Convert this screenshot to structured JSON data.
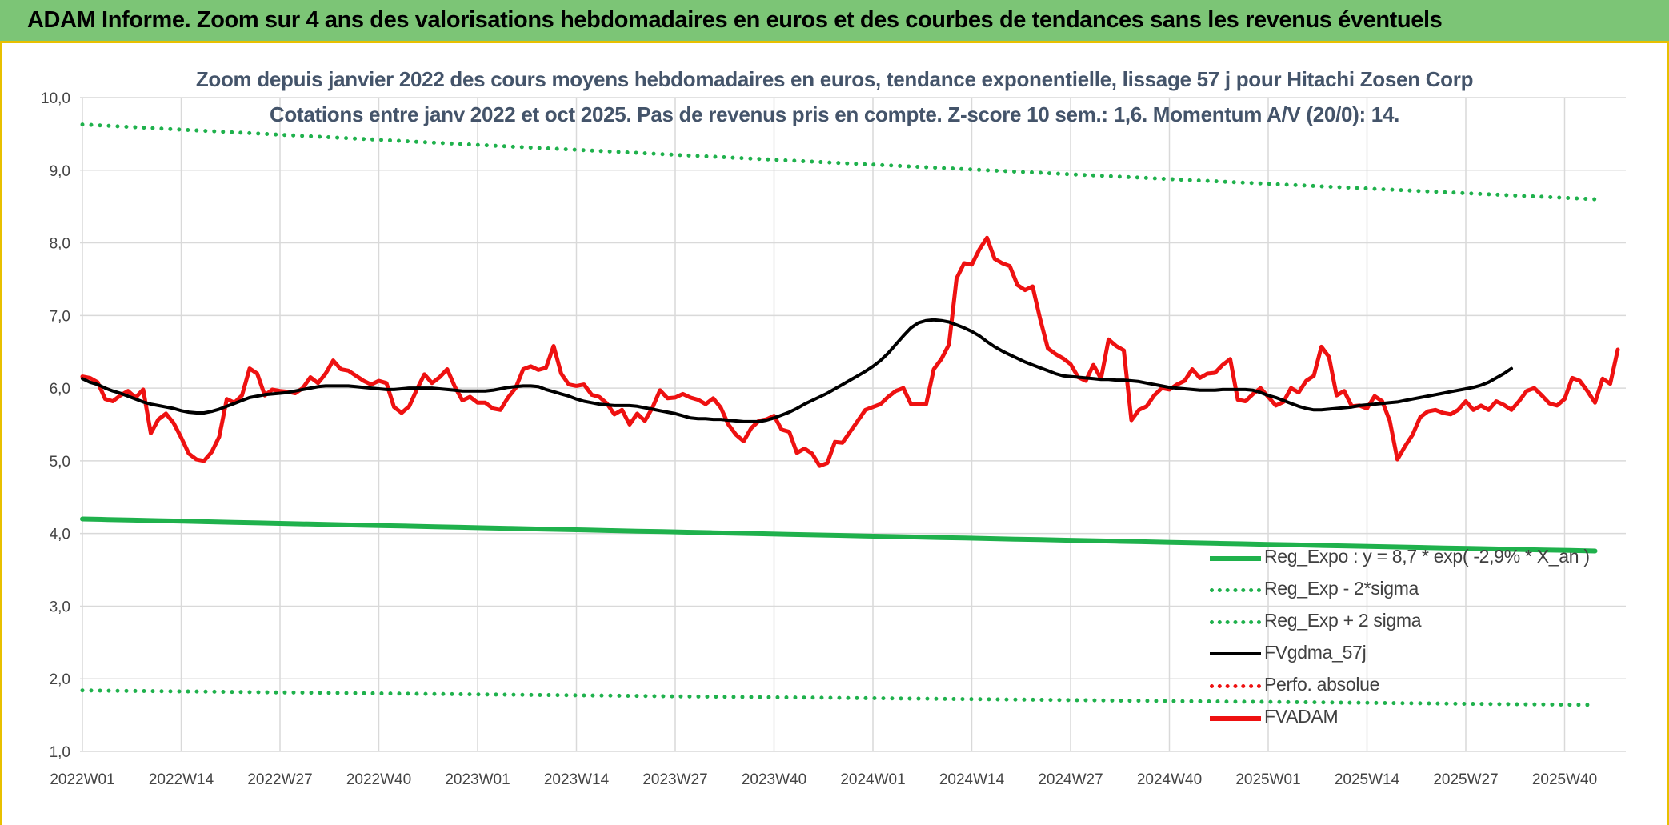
{
  "header": {
    "title": "ADAM Informe. Zoom sur 4 ans des valorisations hebdomadaires en euros et des courbes de tendances sans les revenus éventuels"
  },
  "colors": {
    "header_bg": "#7cc576",
    "border": "#e8c000",
    "green": "#1fb14c",
    "red": "#ee1111",
    "black": "#000000",
    "title_text": "#44546a"
  },
  "chart_data": {
    "type": "line",
    "title": "Zoom depuis janvier 2022 des cours moyens hebdomadaires en euros, tendance exponentielle, lissage 57 j pour Hitachi Zosen Corp",
    "subtitle": "Cotations entre janv 2022 et oct 2025. Pas de revenus pris en compte. Z-score 10 sem.: 1,6. Momentum A/V (20/0): 14.",
    "ylim": [
      1.0,
      10.0
    ],
    "yticks": [
      "1,0",
      "2,0",
      "3,0",
      "4,0",
      "5,0",
      "6,0",
      "7,0",
      "8,0",
      "9,0",
      "10,0"
    ],
    "xticks": [
      "2022W01",
      "2022W14",
      "2022W27",
      "2022W40",
      "2023W01",
      "2023W14",
      "2023W27",
      "2023W40",
      "2024W01",
      "2024W14",
      "2024W27",
      "2024W40",
      "2025W01",
      "2025W14",
      "2025W27",
      "2025W40"
    ],
    "grid": true,
    "legend_position": "bottom-right",
    "series": [
      {
        "name": "Reg_Expo : y = 8,7 * exp( -2,9% * X_an )",
        "style": "solid-thick",
        "color": "#1fb14c",
        "x": [
          "2022W01",
          "2025W44"
        ],
        "values": [
          4.2,
          3.76
        ]
      },
      {
        "name": "Reg_Exp - 2*sigma",
        "style": "dotted",
        "color": "#1fb14c",
        "x": [
          "2022W01",
          "2025W44"
        ],
        "values": [
          1.84,
          1.64
        ]
      },
      {
        "name": "Reg_Exp + 2 sigma",
        "style": "dotted",
        "color": "#1fb14c",
        "x": [
          "2022W01",
          "2025W44"
        ],
        "values": [
          9.63,
          8.6
        ]
      },
      {
        "name": "FVgdma_57j",
        "style": "solid",
        "color": "#000000",
        "x_start": "2022W01",
        "values": [
          6.13,
          6.08,
          6.05,
          6.0,
          5.96,
          5.93,
          5.89,
          5.85,
          5.81,
          5.78,
          5.76,
          5.74,
          5.72,
          5.69,
          5.67,
          5.66,
          5.66,
          5.68,
          5.71,
          5.75,
          5.79,
          5.83,
          5.87,
          5.89,
          5.91,
          5.92,
          5.93,
          5.94,
          5.96,
          5.98,
          6.0,
          6.02,
          6.03,
          6.03,
          6.03,
          6.03,
          6.02,
          6.01,
          6.0,
          5.99,
          5.98,
          5.98,
          5.99,
          6.0,
          6.0,
          6.0,
          6.0,
          5.99,
          5.98,
          5.97,
          5.96,
          5.96,
          5.96,
          5.96,
          5.97,
          5.99,
          6.01,
          6.02,
          6.03,
          6.03,
          6.02,
          5.98,
          5.95,
          5.92,
          5.89,
          5.85,
          5.82,
          5.8,
          5.78,
          5.77,
          5.76,
          5.76,
          5.76,
          5.75,
          5.73,
          5.71,
          5.69,
          5.67,
          5.65,
          5.62,
          5.59,
          5.58,
          5.58,
          5.57,
          5.57,
          5.56,
          5.55,
          5.54,
          5.54,
          5.54,
          5.56,
          5.59,
          5.63,
          5.67,
          5.72,
          5.78,
          5.83,
          5.88,
          5.93,
          5.99,
          6.05,
          6.11,
          6.17,
          6.23,
          6.3,
          6.38,
          6.48,
          6.6,
          6.72,
          6.83,
          6.9,
          6.93,
          6.94,
          6.93,
          6.91,
          6.87,
          6.83,
          6.78,
          6.72,
          6.64,
          6.57,
          6.51,
          6.46,
          6.41,
          6.36,
          6.32,
          6.28,
          6.24,
          6.2,
          6.17,
          6.16,
          6.15,
          6.14,
          6.13,
          6.12,
          6.12,
          6.11,
          6.11,
          6.1,
          6.09,
          6.07,
          6.05,
          6.03,
          6.01,
          6.0,
          5.99,
          5.98,
          5.97,
          5.97,
          5.97,
          5.98,
          5.98,
          5.98,
          5.98,
          5.97,
          5.94,
          5.9,
          5.87,
          5.83,
          5.79,
          5.75,
          5.72,
          5.7,
          5.7,
          5.71,
          5.72,
          5.73,
          5.74,
          5.76,
          5.77,
          5.78,
          5.79,
          5.8,
          5.81,
          5.83,
          5.85,
          5.87,
          5.89,
          5.91,
          5.93,
          5.95,
          5.97,
          5.99,
          6.01,
          6.04,
          6.08,
          6.14,
          6.2,
          6.27
        ]
      },
      {
        "name": "Perfo. absolue",
        "style": "dotted",
        "color": "#ee1111",
        "values": []
      },
      {
        "name": "FVADAM",
        "style": "solid-thick",
        "color": "#ee1111",
        "x_start": "2022W01",
        "values": [
          6.16,
          6.14,
          6.08,
          5.85,
          5.82,
          5.9,
          5.96,
          5.87,
          5.98,
          5.38,
          5.57,
          5.65,
          5.52,
          5.32,
          5.1,
          5.02,
          5.0,
          5.12,
          5.33,
          5.85,
          5.8,
          5.9,
          6.27,
          6.2,
          5.9,
          5.98,
          5.96,
          5.95,
          5.93,
          6.0,
          6.15,
          6.07,
          6.2,
          6.38,
          6.26,
          6.24,
          6.17,
          6.1,
          6.05,
          6.1,
          6.07,
          5.74,
          5.66,
          5.75,
          5.98,
          6.19,
          6.07,
          6.15,
          6.26,
          6.02,
          5.83,
          5.88,
          5.8,
          5.8,
          5.72,
          5.7,
          5.87,
          6.0,
          6.26,
          6.3,
          6.25,
          6.28,
          6.58,
          6.2,
          6.05,
          6.03,
          6.05,
          5.91,
          5.88,
          5.79,
          5.64,
          5.7,
          5.5,
          5.65,
          5.55,
          5.73,
          5.97,
          5.86,
          5.87,
          5.92,
          5.87,
          5.84,
          5.78,
          5.86,
          5.73,
          5.5,
          5.36,
          5.27,
          5.45,
          5.55,
          5.57,
          5.62,
          5.43,
          5.4,
          5.11,
          5.17,
          5.1,
          4.93,
          4.97,
          5.26,
          5.25,
          5.4,
          5.55,
          5.7,
          5.74,
          5.78,
          5.88,
          5.96,
          6.0,
          5.78,
          5.78,
          5.78,
          6.26,
          6.4,
          6.6,
          7.51,
          7.72,
          7.7,
          7.91,
          8.07,
          7.78,
          7.72,
          7.68,
          7.42,
          7.35,
          7.4,
          6.95,
          6.55,
          6.47,
          6.41,
          6.33,
          6.15,
          6.1,
          6.32,
          6.13,
          6.67,
          6.58,
          6.52,
          5.56,
          5.7,
          5.75,
          5.9,
          6.0,
          5.98,
          6.05,
          6.1,
          6.26,
          6.14,
          6.2,
          6.21,
          6.32,
          6.4,
          5.84,
          5.82,
          5.92,
          6.0,
          5.88,
          5.76,
          5.81,
          6.0,
          5.94,
          6.1,
          6.17,
          6.57,
          6.43,
          5.9,
          5.96,
          5.75,
          5.76,
          5.72,
          5.89,
          5.82,
          5.55,
          5.02,
          5.2,
          5.36,
          5.6,
          5.68,
          5.7,
          5.66,
          5.64,
          5.7,
          5.82,
          5.7,
          5.76,
          5.7,
          5.82,
          5.77,
          5.7,
          5.82,
          5.96,
          6.0,
          5.9,
          5.79,
          5.76,
          5.85,
          6.14,
          6.1,
          5.96,
          5.8,
          6.13,
          6.06,
          6.53
        ]
      }
    ]
  }
}
